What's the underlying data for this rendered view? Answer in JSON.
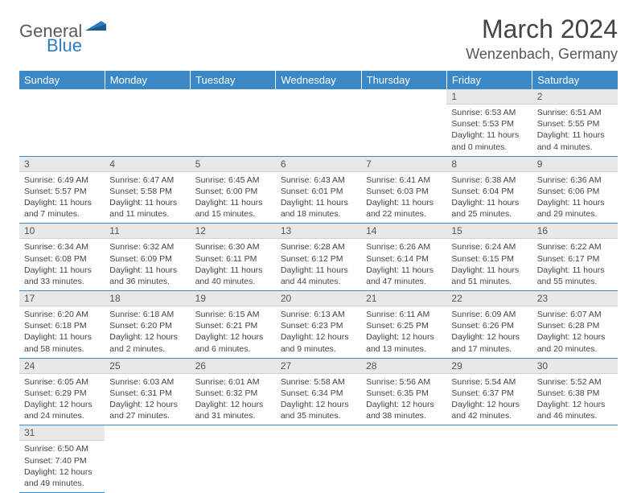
{
  "logo": {
    "part1": "General",
    "part2": "Blue"
  },
  "title": "March 2024",
  "location": "Wenzenbach, Germany",
  "colors": {
    "header_bg": "#3b88c6",
    "header_text": "#ffffff",
    "daynum_bg": "#e8e8e8",
    "cell_border": "#3b88c6",
    "text": "#444444",
    "logo_gray": "#5a5a5a",
    "logo_blue": "#2f7bbf"
  },
  "weekdays": [
    "Sunday",
    "Monday",
    "Tuesday",
    "Wednesday",
    "Thursday",
    "Friday",
    "Saturday"
  ],
  "weeks": [
    [
      null,
      null,
      null,
      null,
      null,
      {
        "n": "1",
        "sunrise": "Sunrise: 6:53 AM",
        "sunset": "Sunset: 5:53 PM",
        "daylight": "Daylight: 11 hours and 0 minutes."
      },
      {
        "n": "2",
        "sunrise": "Sunrise: 6:51 AM",
        "sunset": "Sunset: 5:55 PM",
        "daylight": "Daylight: 11 hours and 4 minutes."
      }
    ],
    [
      {
        "n": "3",
        "sunrise": "Sunrise: 6:49 AM",
        "sunset": "Sunset: 5:57 PM",
        "daylight": "Daylight: 11 hours and 7 minutes."
      },
      {
        "n": "4",
        "sunrise": "Sunrise: 6:47 AM",
        "sunset": "Sunset: 5:58 PM",
        "daylight": "Daylight: 11 hours and 11 minutes."
      },
      {
        "n": "5",
        "sunrise": "Sunrise: 6:45 AM",
        "sunset": "Sunset: 6:00 PM",
        "daylight": "Daylight: 11 hours and 15 minutes."
      },
      {
        "n": "6",
        "sunrise": "Sunrise: 6:43 AM",
        "sunset": "Sunset: 6:01 PM",
        "daylight": "Daylight: 11 hours and 18 minutes."
      },
      {
        "n": "7",
        "sunrise": "Sunrise: 6:41 AM",
        "sunset": "Sunset: 6:03 PM",
        "daylight": "Daylight: 11 hours and 22 minutes."
      },
      {
        "n": "8",
        "sunrise": "Sunrise: 6:38 AM",
        "sunset": "Sunset: 6:04 PM",
        "daylight": "Daylight: 11 hours and 25 minutes."
      },
      {
        "n": "9",
        "sunrise": "Sunrise: 6:36 AM",
        "sunset": "Sunset: 6:06 PM",
        "daylight": "Daylight: 11 hours and 29 minutes."
      }
    ],
    [
      {
        "n": "10",
        "sunrise": "Sunrise: 6:34 AM",
        "sunset": "Sunset: 6:08 PM",
        "daylight": "Daylight: 11 hours and 33 minutes."
      },
      {
        "n": "11",
        "sunrise": "Sunrise: 6:32 AM",
        "sunset": "Sunset: 6:09 PM",
        "daylight": "Daylight: 11 hours and 36 minutes."
      },
      {
        "n": "12",
        "sunrise": "Sunrise: 6:30 AM",
        "sunset": "Sunset: 6:11 PM",
        "daylight": "Daylight: 11 hours and 40 minutes."
      },
      {
        "n": "13",
        "sunrise": "Sunrise: 6:28 AM",
        "sunset": "Sunset: 6:12 PM",
        "daylight": "Daylight: 11 hours and 44 minutes."
      },
      {
        "n": "14",
        "sunrise": "Sunrise: 6:26 AM",
        "sunset": "Sunset: 6:14 PM",
        "daylight": "Daylight: 11 hours and 47 minutes."
      },
      {
        "n": "15",
        "sunrise": "Sunrise: 6:24 AM",
        "sunset": "Sunset: 6:15 PM",
        "daylight": "Daylight: 11 hours and 51 minutes."
      },
      {
        "n": "16",
        "sunrise": "Sunrise: 6:22 AM",
        "sunset": "Sunset: 6:17 PM",
        "daylight": "Daylight: 11 hours and 55 minutes."
      }
    ],
    [
      {
        "n": "17",
        "sunrise": "Sunrise: 6:20 AM",
        "sunset": "Sunset: 6:18 PM",
        "daylight": "Daylight: 11 hours and 58 minutes."
      },
      {
        "n": "18",
        "sunrise": "Sunrise: 6:18 AM",
        "sunset": "Sunset: 6:20 PM",
        "daylight": "Daylight: 12 hours and 2 minutes."
      },
      {
        "n": "19",
        "sunrise": "Sunrise: 6:15 AM",
        "sunset": "Sunset: 6:21 PM",
        "daylight": "Daylight: 12 hours and 6 minutes."
      },
      {
        "n": "20",
        "sunrise": "Sunrise: 6:13 AM",
        "sunset": "Sunset: 6:23 PM",
        "daylight": "Daylight: 12 hours and 9 minutes."
      },
      {
        "n": "21",
        "sunrise": "Sunrise: 6:11 AM",
        "sunset": "Sunset: 6:25 PM",
        "daylight": "Daylight: 12 hours and 13 minutes."
      },
      {
        "n": "22",
        "sunrise": "Sunrise: 6:09 AM",
        "sunset": "Sunset: 6:26 PM",
        "daylight": "Daylight: 12 hours and 17 minutes."
      },
      {
        "n": "23",
        "sunrise": "Sunrise: 6:07 AM",
        "sunset": "Sunset: 6:28 PM",
        "daylight": "Daylight: 12 hours and 20 minutes."
      }
    ],
    [
      {
        "n": "24",
        "sunrise": "Sunrise: 6:05 AM",
        "sunset": "Sunset: 6:29 PM",
        "daylight": "Daylight: 12 hours and 24 minutes."
      },
      {
        "n": "25",
        "sunrise": "Sunrise: 6:03 AM",
        "sunset": "Sunset: 6:31 PM",
        "daylight": "Daylight: 12 hours and 27 minutes."
      },
      {
        "n": "26",
        "sunrise": "Sunrise: 6:01 AM",
        "sunset": "Sunset: 6:32 PM",
        "daylight": "Daylight: 12 hours and 31 minutes."
      },
      {
        "n": "27",
        "sunrise": "Sunrise: 5:58 AM",
        "sunset": "Sunset: 6:34 PM",
        "daylight": "Daylight: 12 hours and 35 minutes."
      },
      {
        "n": "28",
        "sunrise": "Sunrise: 5:56 AM",
        "sunset": "Sunset: 6:35 PM",
        "daylight": "Daylight: 12 hours and 38 minutes."
      },
      {
        "n": "29",
        "sunrise": "Sunrise: 5:54 AM",
        "sunset": "Sunset: 6:37 PM",
        "daylight": "Daylight: 12 hours and 42 minutes."
      },
      {
        "n": "30",
        "sunrise": "Sunrise: 5:52 AM",
        "sunset": "Sunset: 6:38 PM",
        "daylight": "Daylight: 12 hours and 46 minutes."
      }
    ],
    [
      {
        "n": "31",
        "sunrise": "Sunrise: 6:50 AM",
        "sunset": "Sunset: 7:40 PM",
        "daylight": "Daylight: 12 hours and 49 minutes."
      },
      null,
      null,
      null,
      null,
      null,
      null
    ]
  ]
}
